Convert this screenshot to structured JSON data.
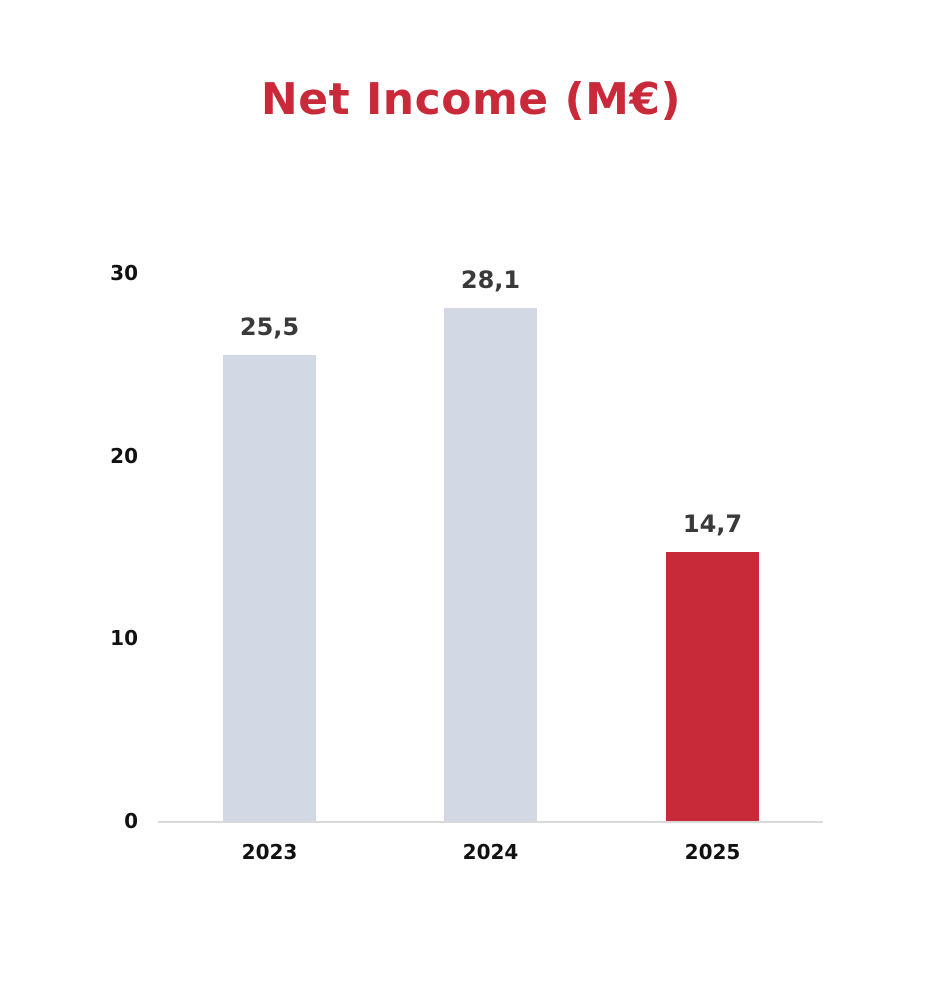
{
  "title": "Net Income (M€)",
  "colors": {
    "title": "#c92a3a",
    "past_bar": "#d3d9e4",
    "current_bar": "#c92a3a"
  },
  "y_ticks": [
    "0",
    "10",
    "20",
    "30"
  ],
  "bars": [
    {
      "category": "2023",
      "label": "25,5",
      "value": 25.5
    },
    {
      "category": "2024",
      "label": "28,1",
      "value": 28.1
    },
    {
      "category": "2025",
      "label": "14,7",
      "value": 14.7
    }
  ],
  "chart_data": {
    "type": "bar",
    "title": "Net Income (M€)",
    "categories": [
      "2023",
      "2024",
      "2025"
    ],
    "values": [
      25.5,
      28.1,
      14.7
    ],
    "data_labels": [
      "25,5",
      "28,1",
      "14,7"
    ],
    "xlabel": "",
    "ylabel": "",
    "ylim": [
      0,
      30
    ],
    "yticks": [
      0,
      10,
      20,
      30
    ],
    "grid": false,
    "legend": null,
    "bar_colors": [
      "#d3d9e4",
      "#d3d9e4",
      "#c92a3a"
    ]
  }
}
